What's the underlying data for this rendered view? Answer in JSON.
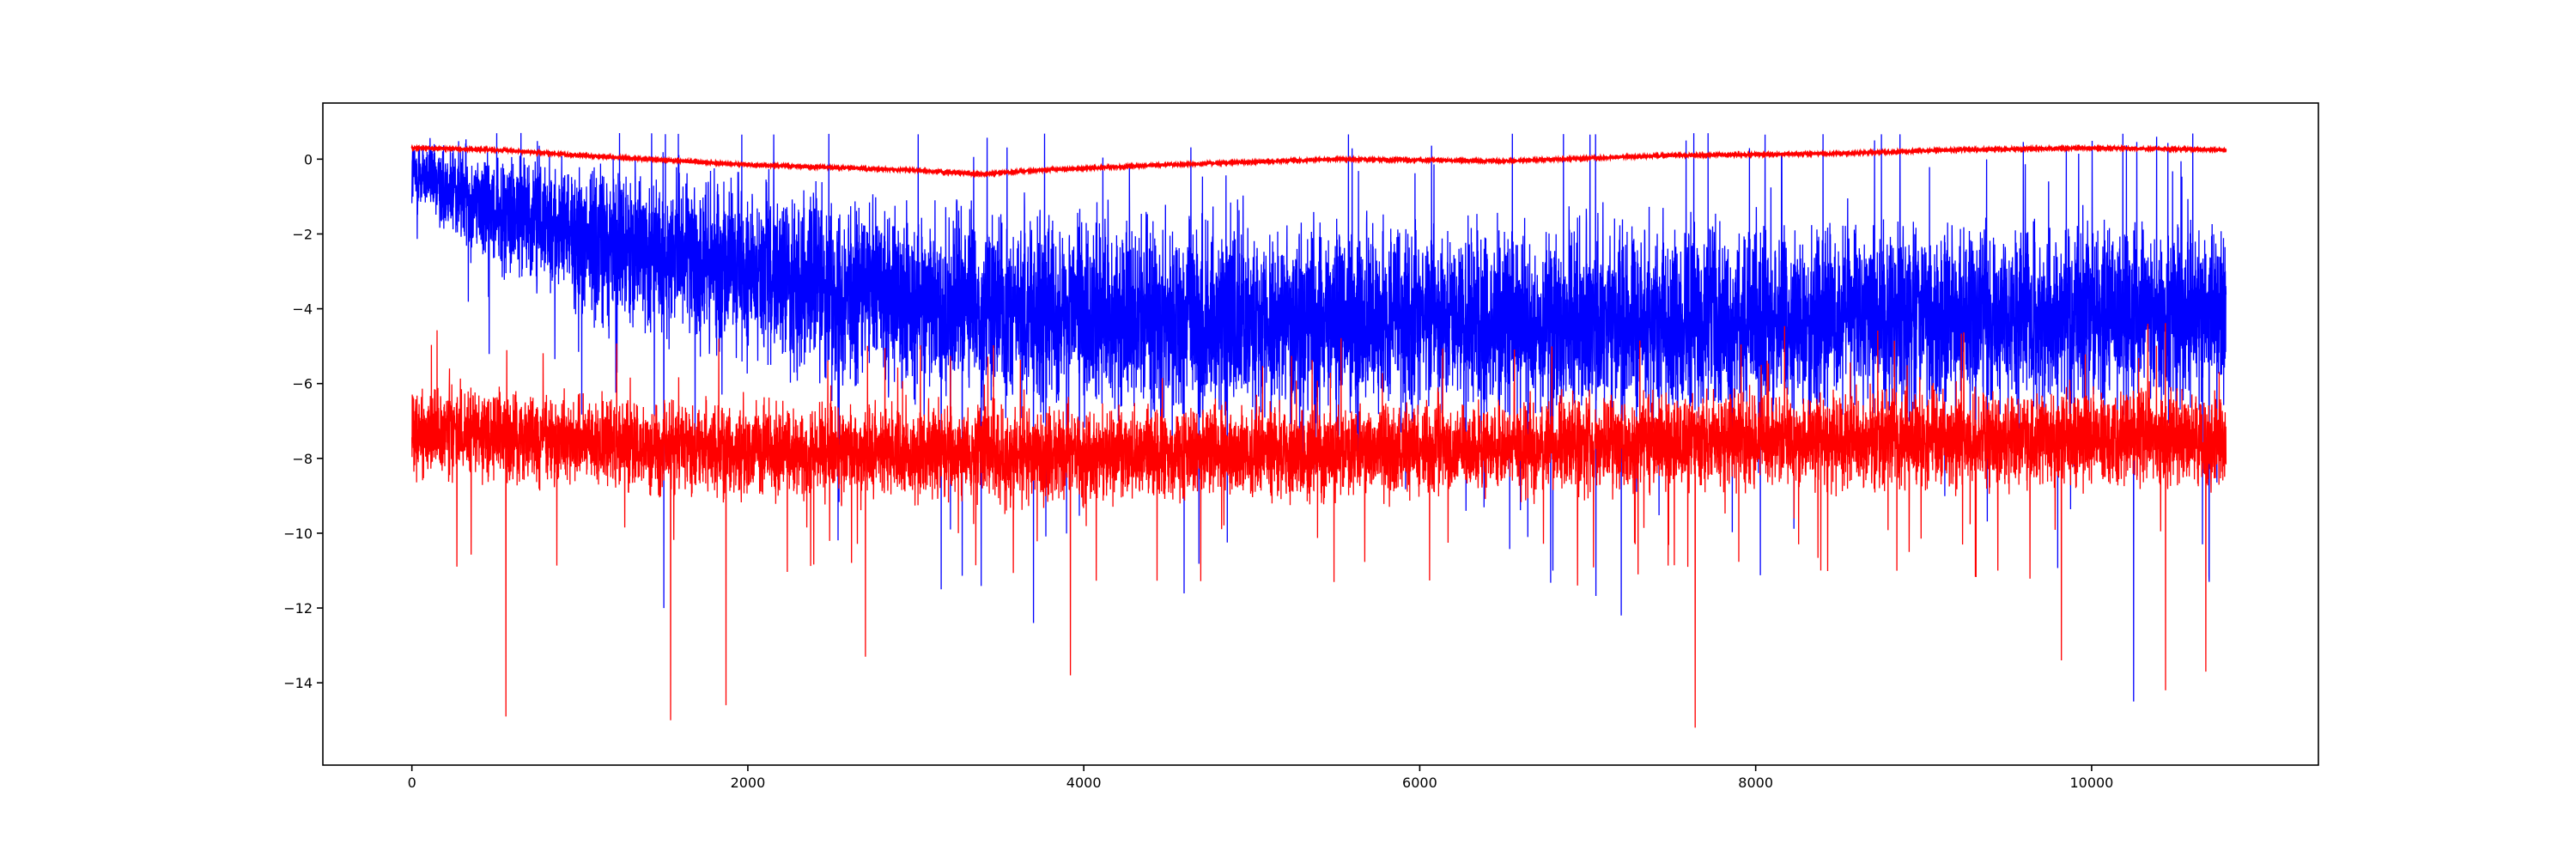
{
  "chart_data": {
    "type": "line",
    "title": "",
    "xlabel": "",
    "ylabel": "",
    "xlim": [
      -530,
      11350
    ],
    "ylim": [
      -16.2,
      1.5
    ],
    "grid": false,
    "legend": "none",
    "xticks": [
      0,
      2000,
      4000,
      6000,
      8000,
      10000
    ],
    "yticks": [
      0,
      -2,
      -4,
      -6,
      -8,
      -10,
      -12,
      -14
    ],
    "xtick_labels": [
      "0",
      "2000",
      "4000",
      "6000",
      "8000",
      "10000"
    ],
    "ytick_labels": [
      "0",
      "−2",
      "−4",
      "−6",
      "−8",
      "−10",
      "−12",
      "−14"
    ],
    "n_points": 10800,
    "series": [
      {
        "color": "#0000ff",
        "style": "noisy",
        "x_range": [
          0,
          10800
        ],
        "upper_max": 0.7,
        "center_profile": [
          [
            0,
            -0.3
          ],
          [
            500,
            -1.3
          ],
          [
            1000,
            -2.0
          ],
          [
            2000,
            -3.0
          ],
          [
            3000,
            -3.8
          ],
          [
            4000,
            -4.2
          ],
          [
            6000,
            -4.3
          ],
          [
            8000,
            -4.3
          ],
          [
            10800,
            -4.2
          ]
        ],
        "spread_profile": [
          [
            0,
            1.3
          ],
          [
            1000,
            2.6
          ],
          [
            3000,
            3.2
          ],
          [
            10800,
            3.0
          ]
        ],
        "spikes_down": [
          [
            10250,
            -14.5
          ],
          [
            3700,
            -12.4
          ],
          [
            7200,
            -12.2
          ],
          [
            10700,
            -11.3
          ],
          [
            1500,
            -12.0
          ]
        ]
      },
      {
        "color": "#ff0000",
        "style": "noisy",
        "x_range": [
          0,
          10800
        ],
        "center_profile": [
          [
            0,
            -7.3
          ],
          [
            2000,
            -7.8
          ],
          [
            4000,
            -7.9
          ],
          [
            6000,
            -7.8
          ],
          [
            8000,
            -7.5
          ],
          [
            10800,
            -7.5
          ]
        ],
        "spread_profile": [
          [
            0,
            1.5
          ],
          [
            10800,
            1.6
          ]
        ],
        "spikes_down": [
          [
            560,
            -14.9
          ],
          [
            1540,
            -15.0
          ],
          [
            1870,
            -14.6
          ],
          [
            7640,
            -15.2
          ],
          [
            3920,
            -13.8
          ],
          [
            2700,
            -13.3
          ],
          [
            9820,
            -13.4
          ],
          [
            10680,
            -13.7
          ],
          [
            10440,
            -14.2
          ]
        ]
      },
      {
        "color": "#ff0000",
        "style": "smooth",
        "x_range": [
          0,
          10800
        ],
        "profile": [
          [
            0,
            0.3
          ],
          [
            500,
            0.25
          ],
          [
            1000,
            0.1
          ],
          [
            2000,
            -0.15
          ],
          [
            3000,
            -0.3
          ],
          [
            3400,
            -0.4
          ],
          [
            3700,
            -0.3
          ],
          [
            4500,
            -0.15
          ],
          [
            5500,
            0.0
          ],
          [
            6500,
            -0.05
          ],
          [
            7500,
            0.1
          ],
          [
            8500,
            0.15
          ],
          [
            9200,
            0.25
          ],
          [
            10000,
            0.3
          ],
          [
            10800,
            0.25
          ]
        ]
      }
    ]
  }
}
